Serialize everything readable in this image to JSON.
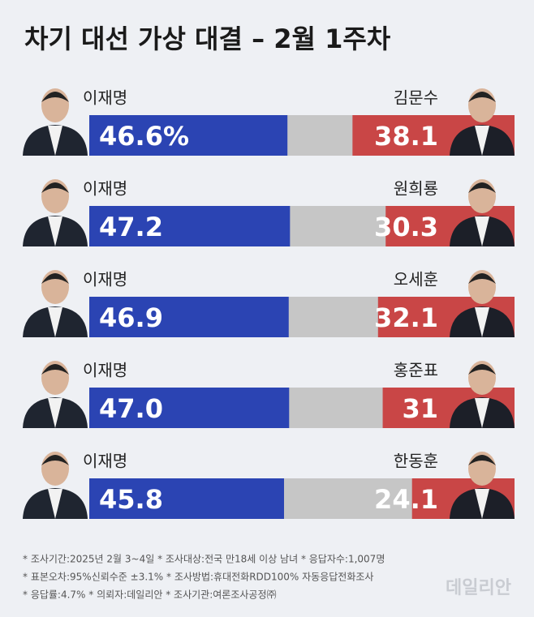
{
  "chart_data": {
    "type": "diverging_bar",
    "title": "차기 대선 가상 대결 – 2월 1주차",
    "left_names": [
      "이재명",
      "이재명",
      "이재명",
      "이재명",
      "이재명"
    ],
    "right_names": [
      "김문수",
      "원희룡",
      "오세훈",
      "홍준표",
      "한동훈"
    ],
    "series": [
      {
        "color": "#2b44b3",
        "values": [
          46.6,
          47.2,
          46.9,
          47.0,
          45.8
        ],
        "value_labels": [
          "46.6%",
          "47.2",
          "46.9",
          "47.0",
          "45.8"
        ]
      },
      {
        "color": "#c94646",
        "values": [
          38.1,
          30.3,
          32.1,
          31.0,
          24.1
        ]
      }
    ],
    "notes": [
      "* 조사기간:2025년 2월 3~4일  * 조사대상:전국 만18세 이상 남녀  * 응답자수:1,007명",
      "* 표본오차:95%신뢰수준 ±3.1%  * 조사방법:휴대전화RDD100% 자동응답전화조사",
      "* 응답률:4.7%  * 의뢰자:데일리안  * 조사기관:여론조사공정㈜"
    ],
    "watermark": "데일리안"
  }
}
